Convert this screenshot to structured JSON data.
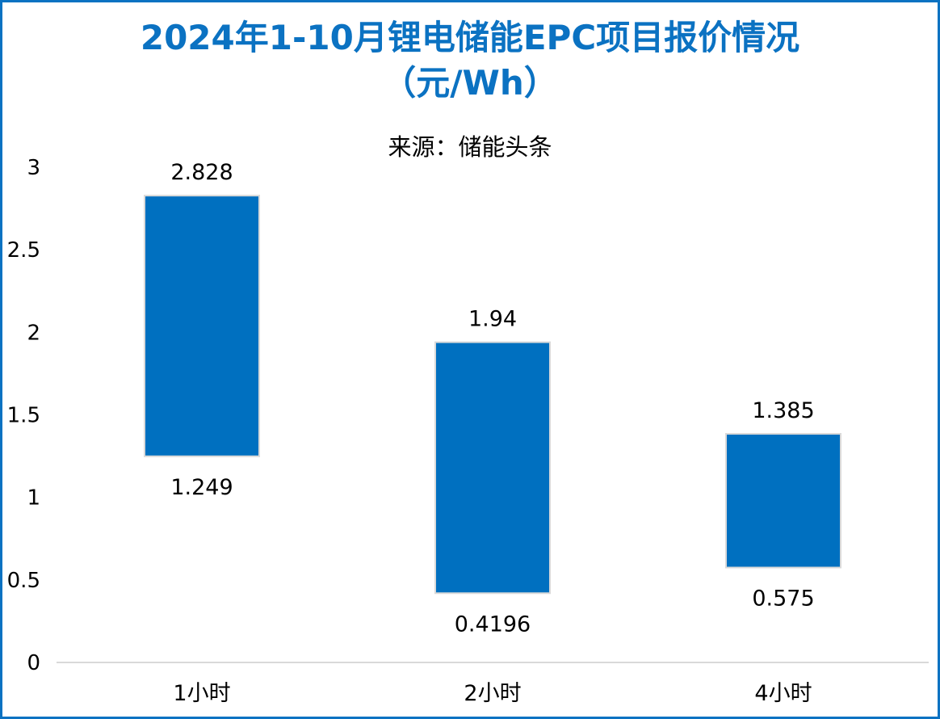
{
  "chart_data": {
    "type": "bar",
    "title_lines": [
      "2024年1-10月锂电储能EPC项目报价情况",
      "（元/Wh）"
    ],
    "subtitle": "来源：储能头条",
    "categories": [
      "1小时",
      "2小时",
      "4小时"
    ],
    "low_values": [
      1.249,
      0.4196,
      0.575
    ],
    "high_values": [
      2.828,
      1.94,
      1.385
    ],
    "low_labels": [
      "1.249",
      "0.4196",
      "0.575"
    ],
    "high_labels": [
      "2.828",
      "1.94",
      "1.385"
    ],
    "ylim": [
      0,
      3
    ],
    "y_ticks": [
      0,
      0.5,
      1,
      1.5,
      2,
      2.5,
      3
    ],
    "y_tick_labels": [
      "0",
      "0.5",
      "1",
      "1.5",
      "2",
      "2.5",
      "3"
    ],
    "grid": false,
    "bar_color": "#0070c0",
    "bar_edge_color": "#d9d9d9",
    "axis_color": "#d9d9d9",
    "accent_color": "#0b72c2"
  }
}
